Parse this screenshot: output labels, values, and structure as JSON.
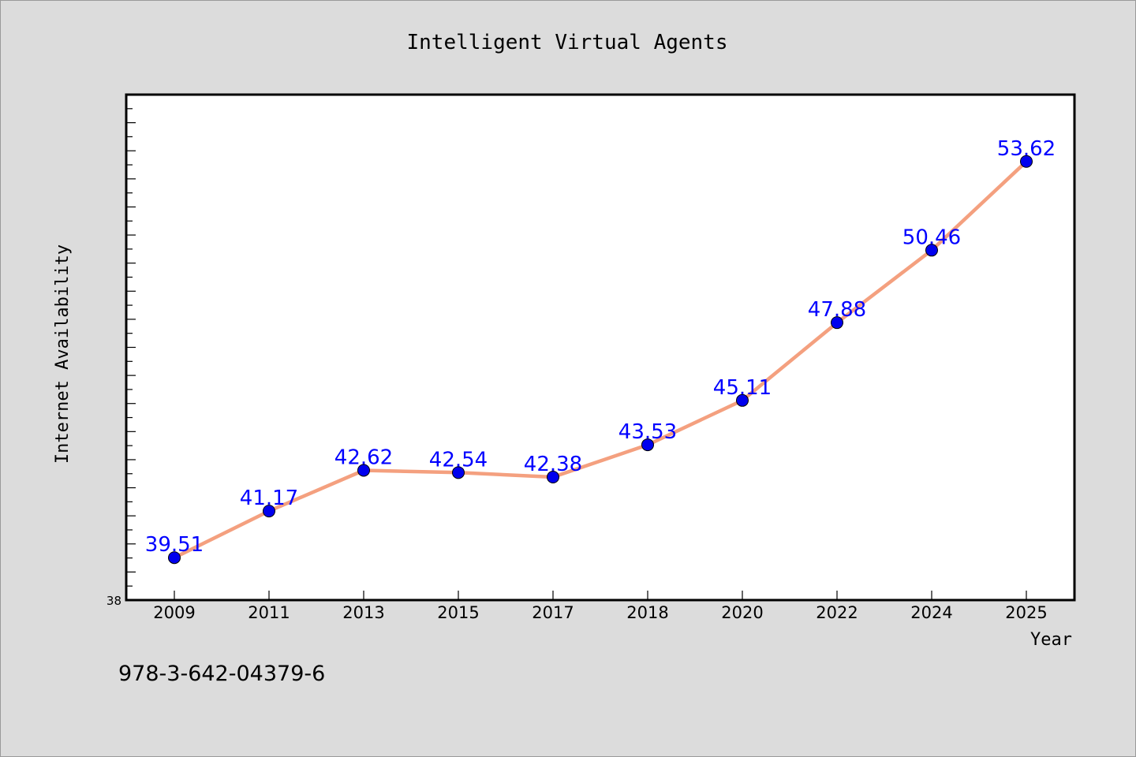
{
  "chart_data": {
    "type": "line",
    "title": "Intelligent Virtual Agents",
    "xlabel": "Year",
    "ylabel": "Internet Availability",
    "categories": [
      "2009",
      "2011",
      "2013",
      "2015",
      "2017",
      "2018",
      "2020",
      "2022",
      "2024",
      "2025"
    ],
    "series": [
      {
        "values": [
          39.51,
          41.17,
          42.62,
          42.54,
          42.38,
          43.53,
          45.11,
          47.88,
          50.46,
          53.62
        ],
        "labels": [
          "39.51",
          "41.17",
          "42.62",
          "42.54",
          "42.38",
          "43.53",
          "45.11",
          "47.88",
          "50.46",
          "53.62"
        ]
      }
    ],
    "ylim": [
      38,
      56
    ],
    "yticks": [
      "38"
    ],
    "grid": false,
    "line_color": "#f4a07f",
    "marker_color": "#0000ee",
    "label_color": "#0000ff"
  },
  "footer": {
    "isbn": "978-3-642-04379-6"
  }
}
